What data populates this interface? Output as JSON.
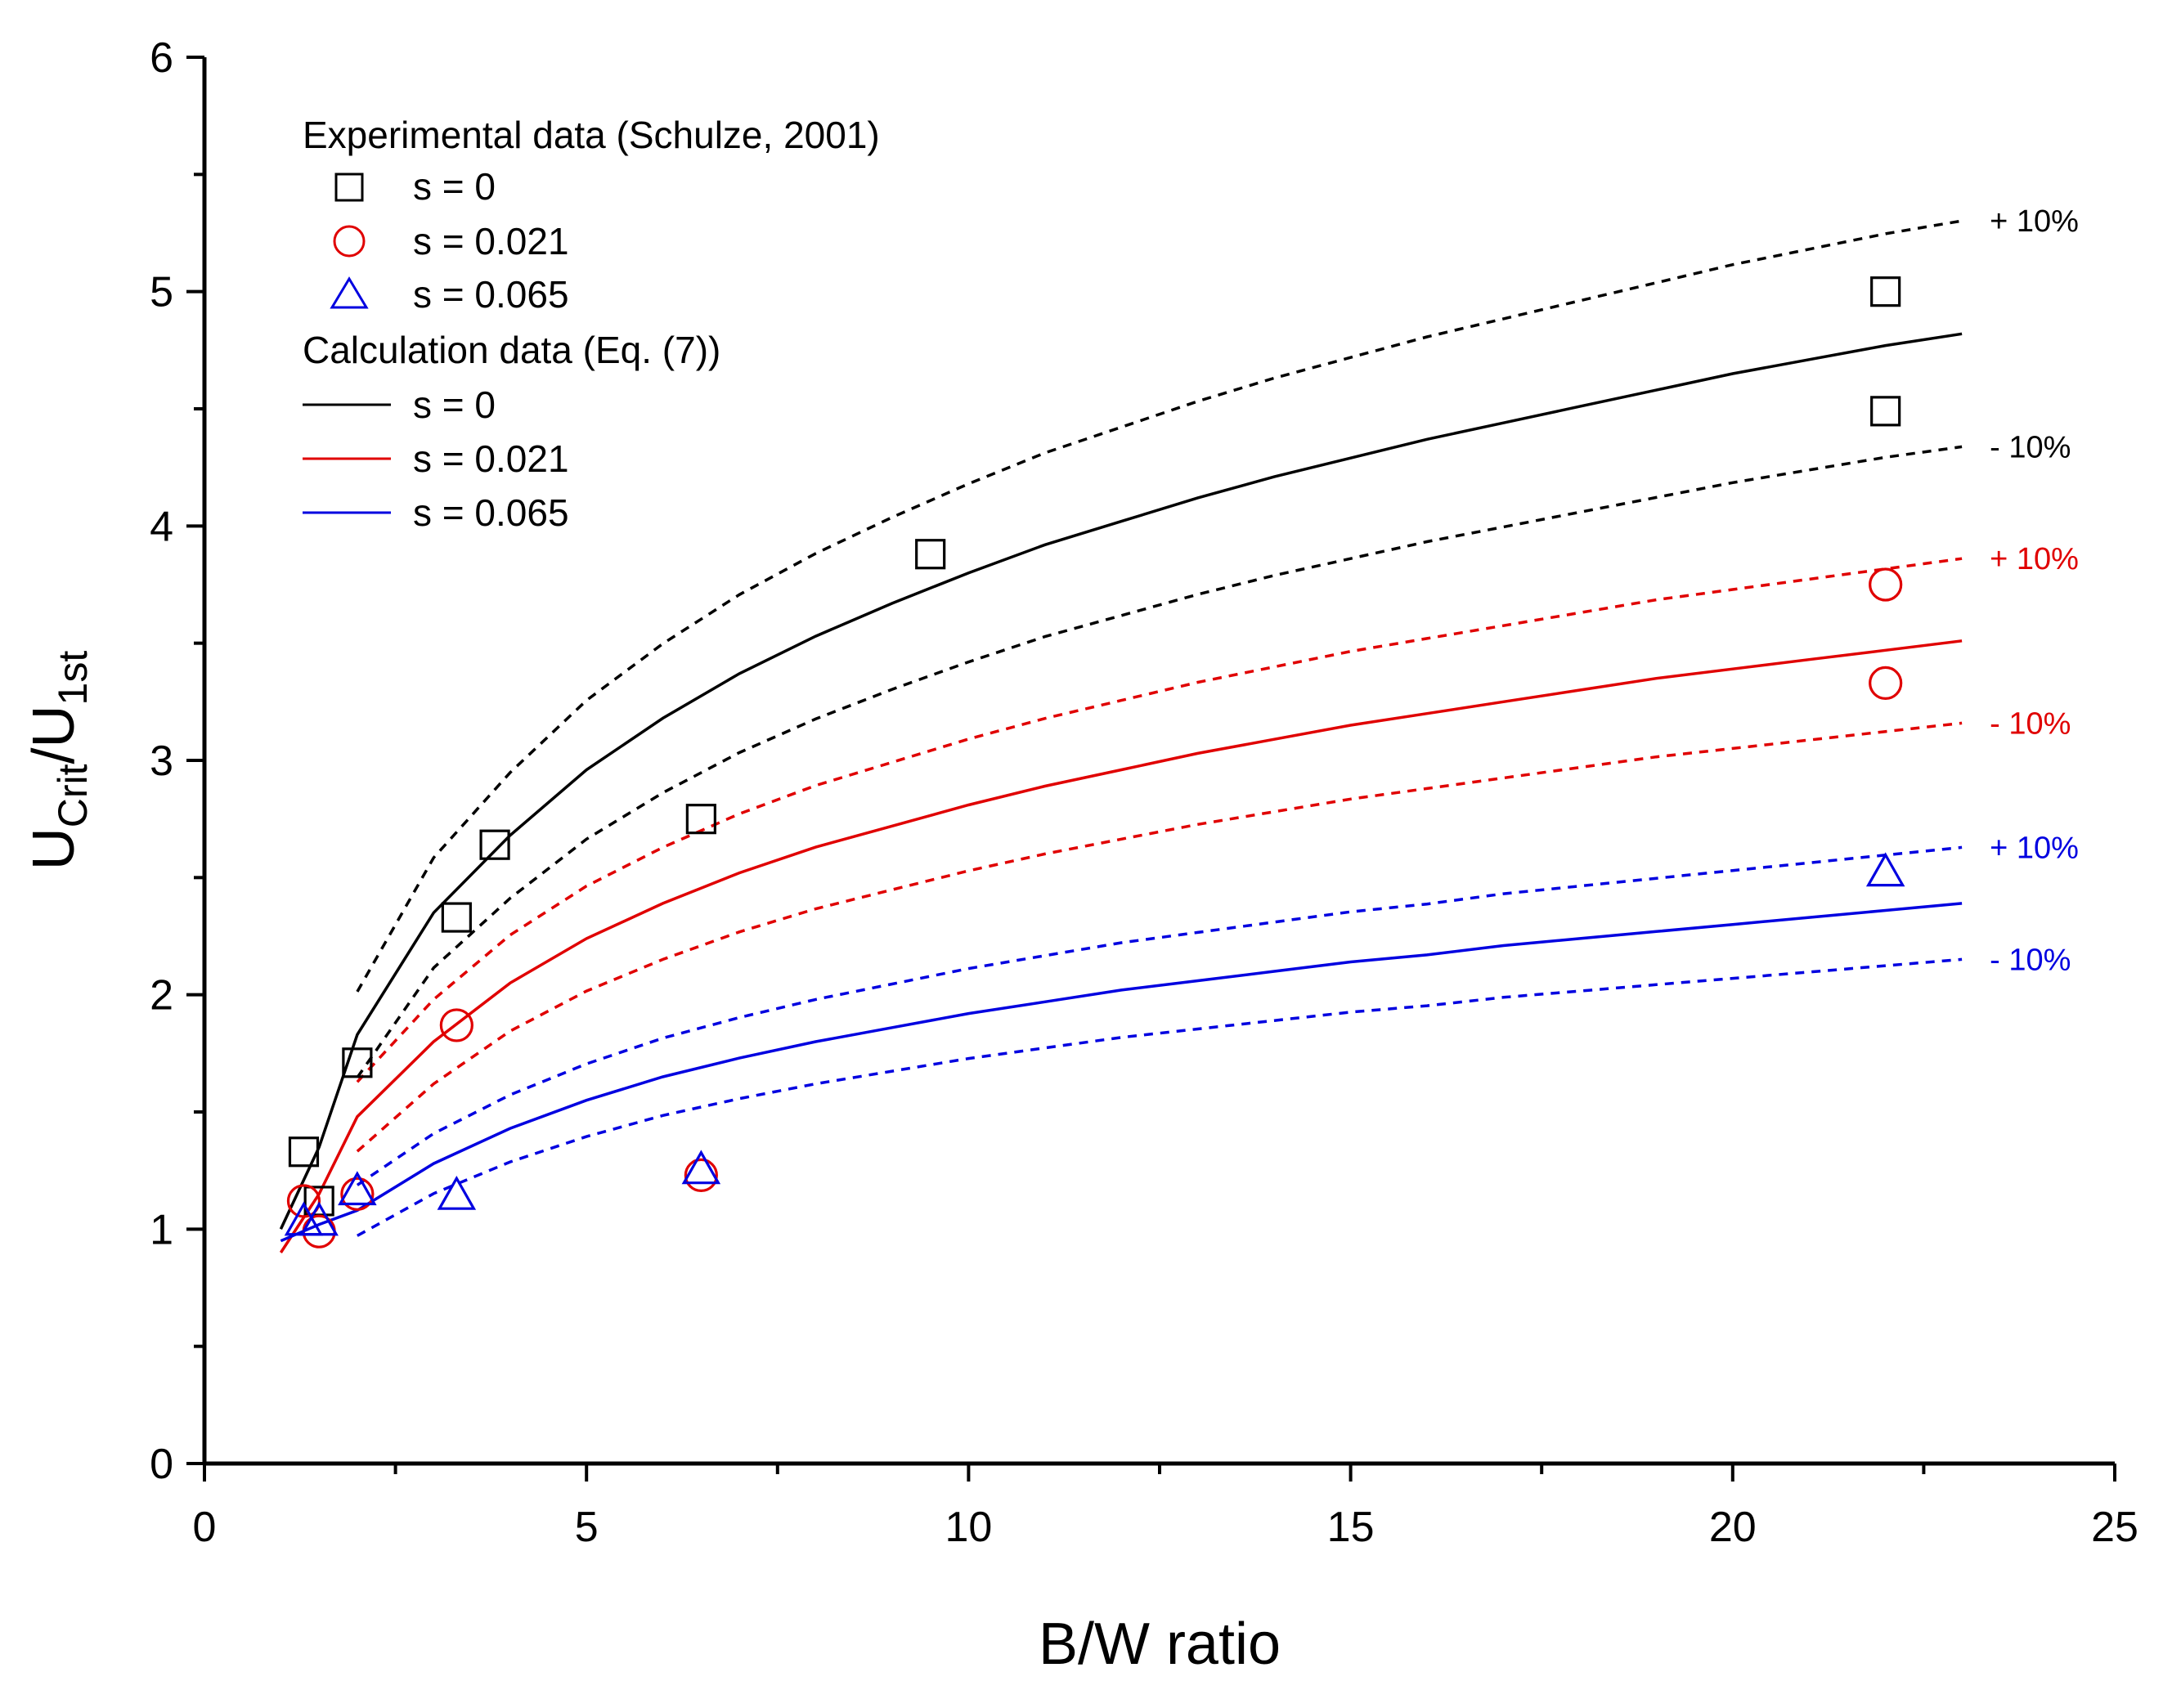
{
  "chart_data": {
    "type": "scatter",
    "xlabel": "B/W ratio",
    "ylabel": {
      "main": "U",
      "sub1": "Crit",
      "sep": "/U",
      "sub2": "1st"
    },
    "xlim": [
      0,
      25
    ],
    "ylim": [
      0,
      6
    ],
    "x_ticks": [
      0,
      5,
      10,
      15,
      20,
      25
    ],
    "x_minor_ticks": [
      2.5,
      7.5,
      12.5,
      17.5,
      22.5
    ],
    "y_ticks": [
      0,
      1,
      2,
      3,
      4,
      5,
      6
    ],
    "y_minor_ticks": [
      0.5,
      1.5,
      2.5,
      3.5,
      4.5,
      5.5
    ],
    "grid": false,
    "colors": {
      "s0": "#000000",
      "s021": "#e00000",
      "s065": "#0000e0"
    },
    "legend": {
      "experimental_title": "Experimental data (Schulze, 2001)",
      "calculation_title": "Calculation data (Eq. (7))",
      "experimental_items": [
        {
          "marker": "square",
          "color": "#000000",
          "label": "s = 0"
        },
        {
          "marker": "circle",
          "color": "#e00000",
          "label": "s = 0.021"
        },
        {
          "marker": "triangle",
          "color": "#0000e0",
          "label": "s = 0.065"
        }
      ],
      "calculation_items": [
        {
          "color": "#000000",
          "label": "s = 0"
        },
        {
          "color": "#e00000",
          "label": "s = 0.021"
        },
        {
          "color": "#0000e0",
          "label": "s = 0.065"
        }
      ]
    },
    "experimental": [
      {
        "name": "s = 0",
        "marker": "square",
        "color": "#000000",
        "points": [
          [
            1.3,
            1.33
          ],
          [
            1.5,
            1.12
          ],
          [
            2.0,
            1.71
          ],
          [
            3.3,
            2.33
          ],
          [
            3.8,
            2.64
          ],
          [
            6.5,
            2.75
          ],
          [
            9.5,
            3.88
          ],
          [
            22.0,
            5.0
          ],
          [
            22.0,
            4.49
          ]
        ]
      },
      {
        "name": "s = 0.021",
        "marker": "circle",
        "color": "#e00000",
        "points": [
          [
            1.3,
            1.12
          ],
          [
            1.5,
            0.99
          ],
          [
            2.0,
            1.15
          ],
          [
            3.3,
            1.87
          ],
          [
            6.5,
            1.23
          ],
          [
            22.0,
            3.75
          ],
          [
            22.0,
            3.33
          ]
        ]
      },
      {
        "name": "s = 0.065",
        "marker": "triangle",
        "color": "#0000e0",
        "points": [
          [
            1.3,
            1.03
          ],
          [
            1.5,
            1.03
          ],
          [
            2.0,
            1.16
          ],
          [
            3.3,
            1.14
          ],
          [
            6.5,
            1.25
          ],
          [
            22.0,
            2.52
          ]
        ]
      }
    ],
    "calculated": [
      {
        "name": "s = 0",
        "color": "#000000",
        "points": [
          [
            1.0,
            1.0
          ],
          [
            1.5,
            1.35
          ],
          [
            2.0,
            1.83
          ],
          [
            3.0,
            2.35
          ],
          [
            4.0,
            2.68
          ],
          [
            5.0,
            2.96
          ],
          [
            6.0,
            3.18
          ],
          [
            7.0,
            3.37
          ],
          [
            8.0,
            3.53
          ],
          [
            9.0,
            3.67
          ],
          [
            10.0,
            3.8
          ],
          [
            11.0,
            3.92
          ],
          [
            12.0,
            4.02
          ],
          [
            13.0,
            4.12
          ],
          [
            14.0,
            4.21
          ],
          [
            15.0,
            4.29
          ],
          [
            16.0,
            4.37
          ],
          [
            17.0,
            4.44
          ],
          [
            18.0,
            4.51
          ],
          [
            19.0,
            4.58
          ],
          [
            20.0,
            4.65
          ],
          [
            21.0,
            4.71
          ],
          [
            22.0,
            4.77
          ],
          [
            23.0,
            4.82
          ]
        ]
      },
      {
        "name": "s = 0.021",
        "color": "#e00000",
        "points": [
          [
            1.0,
            0.9
          ],
          [
            1.5,
            1.15
          ],
          [
            2.0,
            1.48
          ],
          [
            3.0,
            1.8
          ],
          [
            4.0,
            2.05
          ],
          [
            5.0,
            2.24
          ],
          [
            6.0,
            2.39
          ],
          [
            7.0,
            2.52
          ],
          [
            8.0,
            2.63
          ],
          [
            9.0,
            2.72
          ],
          [
            10.0,
            2.81
          ],
          [
            11.0,
            2.89
          ],
          [
            12.0,
            2.96
          ],
          [
            13.0,
            3.03
          ],
          [
            14.0,
            3.09
          ],
          [
            15.0,
            3.15
          ],
          [
            16.0,
            3.2
          ],
          [
            17.0,
            3.25
          ],
          [
            18.0,
            3.3
          ],
          [
            19.0,
            3.35
          ],
          [
            20.0,
            3.39
          ],
          [
            21.0,
            3.43
          ],
          [
            22.0,
            3.47
          ],
          [
            23.0,
            3.51
          ]
        ]
      },
      {
        "name": "s = 0.065",
        "color": "#0000e0",
        "points": [
          [
            1.0,
            0.95
          ],
          [
            1.5,
            1.02
          ],
          [
            2.0,
            1.08
          ],
          [
            3.0,
            1.28
          ],
          [
            4.0,
            1.43
          ],
          [
            5.0,
            1.55
          ],
          [
            6.0,
            1.65
          ],
          [
            7.0,
            1.73
          ],
          [
            8.0,
            1.8
          ],
          [
            9.0,
            1.86
          ],
          [
            10.0,
            1.92
          ],
          [
            11.0,
            1.97
          ],
          [
            12.0,
            2.02
          ],
          [
            13.0,
            2.06
          ],
          [
            14.0,
            2.1
          ],
          [
            15.0,
            2.14
          ],
          [
            16.0,
            2.17
          ],
          [
            17.0,
            2.21
          ],
          [
            18.0,
            2.24
          ],
          [
            19.0,
            2.27
          ],
          [
            20.0,
            2.3
          ],
          [
            21.0,
            2.33
          ],
          [
            22.0,
            2.36
          ],
          [
            23.0,
            2.39
          ]
        ]
      }
    ],
    "bands": [
      {
        "of": 0,
        "factor": 1.1,
        "label": "+ 10%",
        "color": "#000000"
      },
      {
        "of": 0,
        "factor": 0.9,
        "label": "- 10%",
        "color": "#000000"
      },
      {
        "of": 1,
        "factor": 1.1,
        "label": "+ 10%",
        "color": "#e00000"
      },
      {
        "of": 1,
        "factor": 0.9,
        "label": "- 10%",
        "color": "#e00000"
      },
      {
        "of": 2,
        "factor": 1.1,
        "label": "+ 10%",
        "color": "#0000e0"
      },
      {
        "of": 2,
        "factor": 0.9,
        "label": "- 10%",
        "color": "#0000e0"
      }
    ]
  }
}
